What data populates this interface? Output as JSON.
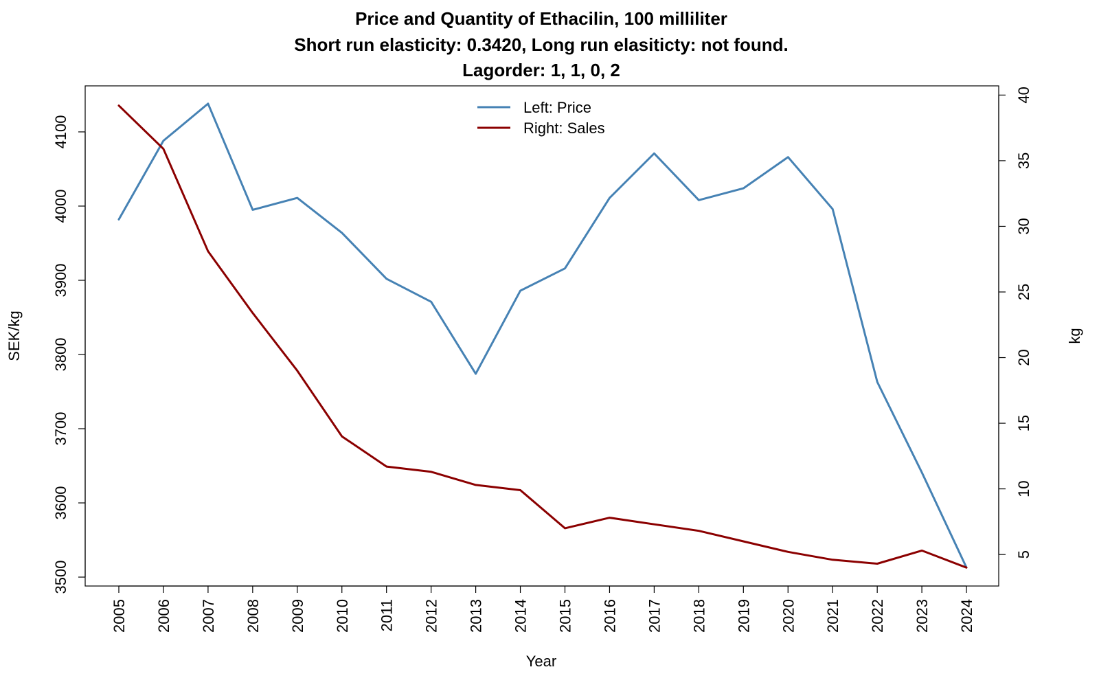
{
  "chart_data": {
    "type": "line",
    "title": [
      "Price and Quantity of Ethacilin, 100 milliliter",
      "Short run elasticity: 0.3420,   Long run elasiticty: not found.",
      "Lagorder: 1, 1, 0, 2"
    ],
    "xlabel": "Year",
    "ylabel_left": "SEK/kg",
    "ylabel_right": "kg",
    "x": [
      "2005",
      "2006",
      "2007",
      "2008",
      "2009",
      "2010",
      "2011",
      "2012",
      "2013",
      "2014",
      "2015",
      "2016",
      "2017",
      "2018",
      "2019",
      "2020",
      "2021",
      "2022",
      "2023",
      "2024"
    ],
    "y_left_ticks": [
      3500,
      3600,
      3700,
      3800,
      3900,
      4000,
      4100
    ],
    "y_right_ticks": [
      5,
      10,
      15,
      20,
      25,
      30,
      35,
      40
    ],
    "y_left_range": [
      3488,
      4162
    ],
    "y_right_range": [
      2.6,
      40.7
    ],
    "legend_position": "top-center",
    "series": [
      {
        "name": "Left: Price",
        "axis": "left",
        "color": "#4682B4",
        "values": [
          3982,
          4088,
          4138,
          3995,
          4011,
          3964,
          3902,
          3871,
          3774,
          3886,
          3916,
          4011,
          4071,
          4008,
          4024,
          4066,
          3996,
          3763,
          3641,
          3513
        ]
      },
      {
        "name": "Right: Sales",
        "axis": "right",
        "color": "#8B0000",
        "values": [
          39.2,
          35.9,
          28.1,
          23.4,
          19.0,
          14.0,
          11.7,
          11.3,
          10.3,
          9.9,
          7.0,
          7.8,
          7.3,
          6.8,
          6.0,
          5.2,
          4.6,
          4.3,
          5.3,
          4.0
        ]
      }
    ]
  }
}
